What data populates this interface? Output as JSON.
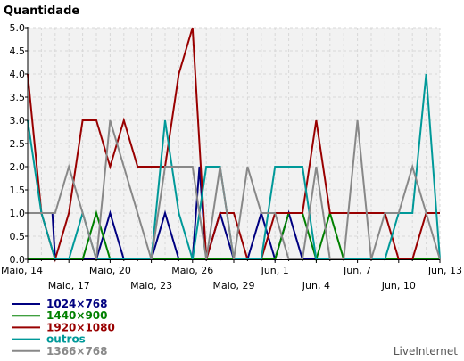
{
  "chart_data": {
    "type": "line",
    "title": "",
    "ylabel": "Quantidade",
    "xlabel": "",
    "ylim": [
      0,
      5
    ],
    "y_ticks": [
      "0.0",
      "0.5",
      "1.0",
      "1.5",
      "2.0",
      "2.5",
      "3.0",
      "3.5",
      "4.0",
      "4.5",
      "5.0"
    ],
    "x_days": [
      "Maio, 14",
      "Maio, 15",
      "Maio, 16",
      "Maio, 17",
      "Maio, 18",
      "Maio, 19",
      "Maio, 20",
      "Maio, 21",
      "Maio, 22",
      "Maio, 23",
      "Maio, 24",
      "Maio, 25",
      "Maio, 26",
      "Maio, 27",
      "Maio, 28",
      "Maio, 29",
      "Maio, 30",
      "Maio, 31",
      "Jun, 1",
      "Jun, 2",
      "Jun, 3",
      "Jun, 4",
      "Jun, 5",
      "Jun, 6",
      "Jun, 7",
      "Jun, 8",
      "Jun, 9",
      "Jun, 10",
      "Jun, 11",
      "Jun, 12",
      "Jun, 13"
    ],
    "x_tick_labels": [
      {
        "label": "Maio, 14",
        "day": 0,
        "row": 0
      },
      {
        "label": "Maio, 17",
        "day": 3,
        "row": 1
      },
      {
        "label": "Maio, 20",
        "day": 6,
        "row": 0
      },
      {
        "label": "Maio, 23",
        "day": 9,
        "row": 1
      },
      {
        "label": "Maio, 26",
        "day": 12,
        "row": 0
      },
      {
        "label": "Maio, 29",
        "day": 15,
        "row": 1
      },
      {
        "label": "Jun, 1",
        "day": 18,
        "row": 0
      },
      {
        "label": "Jun, 4",
        "day": 21,
        "row": 1
      },
      {
        "label": "Jun, 7",
        "day": 24,
        "row": 0
      },
      {
        "label": "Jun, 10",
        "day": 27,
        "row": 1
      },
      {
        "label": "Jun, 13",
        "day": 30,
        "row": 0
      }
    ],
    "grid": true,
    "legend_position": "bottom-left",
    "series": [
      {
        "name": "1024×768",
        "color": "#000080",
        "x": [
          0,
          1,
          1.8,
          2,
          3,
          4,
          5,
          6,
          7,
          8,
          9,
          10,
          11,
          12,
          12.5,
          13,
          14,
          15,
          16,
          17,
          18,
          19,
          20,
          21,
          22,
          23,
          24,
          25,
          26,
          27,
          28,
          29,
          30
        ],
        "values": [
          1,
          1,
          1,
          0,
          0,
          0,
          0,
          1,
          0,
          0,
          0,
          1,
          0,
          0,
          2,
          0,
          1,
          0,
          0,
          1,
          0,
          1,
          0,
          0,
          0,
          0,
          0,
          0,
          0,
          0,
          0,
          0,
          0
        ]
      },
      {
        "name": "1440×900",
        "color": "#008000",
        "x": [
          0,
          1,
          2,
          3,
          4,
          5,
          6,
          7,
          8,
          9,
          10,
          11,
          12,
          13,
          14,
          15,
          16,
          17,
          18,
          19,
          20,
          21,
          22,
          23,
          24,
          25,
          26,
          27,
          28,
          29,
          30
        ],
        "values": [
          0,
          0,
          0,
          0,
          0,
          1,
          0,
          0,
          0,
          0,
          0,
          0,
          0,
          0,
          0,
          0,
          0,
          0,
          0,
          1,
          1,
          0,
          1,
          0,
          0,
          0,
          0,
          0,
          0,
          0,
          0
        ]
      },
      {
        "name": "1920×1080",
        "color": "#990000",
        "x": [
          0,
          1,
          2,
          3,
          4,
          5,
          6,
          7,
          8,
          9,
          10,
          11,
          12,
          13,
          14,
          15,
          16,
          17,
          18,
          19,
          20,
          21,
          22,
          23,
          24,
          25,
          26,
          27,
          28,
          29,
          30
        ],
        "values": [
          4,
          1,
          0,
          1,
          3,
          3,
          2,
          3,
          2,
          2,
          2,
          4,
          5,
          0,
          1,
          1,
          0,
          0,
          1,
          1,
          1,
          3,
          1,
          1,
          1,
          1,
          1,
          0,
          0,
          1,
          1
        ]
      },
      {
        "name": "outros",
        "color": "#009999",
        "x": [
          0,
          1,
          2,
          3,
          4,
          5,
          6,
          7,
          8,
          9,
          10,
          11,
          12,
          13,
          14,
          15,
          16,
          17,
          18,
          19,
          20,
          21,
          22,
          23,
          24,
          25,
          26,
          27,
          28,
          29,
          30
        ],
        "values": [
          3,
          1,
          0,
          0,
          1,
          0,
          0,
          0,
          0,
          0,
          3,
          1,
          0,
          2,
          2,
          0,
          0,
          0,
          2,
          2,
          2,
          0,
          0,
          0,
          0,
          0,
          0,
          1,
          1,
          4,
          0
        ]
      },
      {
        "name": "1366×768",
        "color": "#888888",
        "x": [
          0,
          1,
          2,
          3,
          4,
          5,
          6,
          7,
          8,
          9,
          10,
          11,
          12,
          13,
          14,
          15,
          16,
          17,
          18,
          19,
          20,
          21,
          22,
          23,
          24,
          25,
          26,
          27,
          28,
          29,
          30
        ],
        "values": [
          1,
          1,
          1,
          2,
          1,
          0,
          3,
          2,
          1,
          0,
          2,
          2,
          2,
          0,
          2,
          0,
          2,
          1,
          1,
          0,
          0,
          2,
          0,
          0,
          3,
          0,
          1,
          1,
          2,
          1,
          0
        ]
      }
    ]
  },
  "brand": "LiveInternet"
}
